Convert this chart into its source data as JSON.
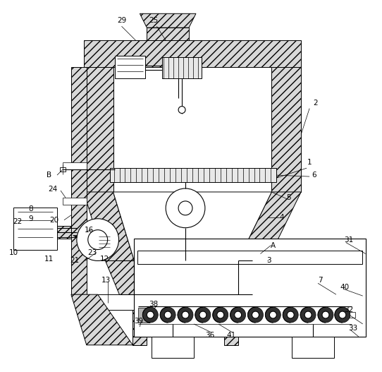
{
  "bg_color": "#ffffff",
  "line_color": "#000000",
  "lw": 0.8,
  "fs": 7.5
}
